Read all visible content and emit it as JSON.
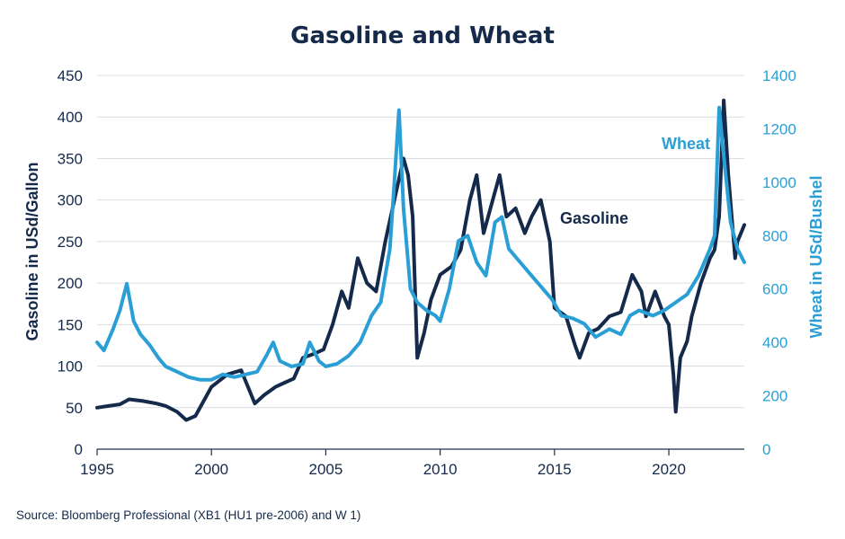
{
  "chart_data": {
    "type": "line",
    "title": "Gasoline and Wheat",
    "source": "Source: Bloomberg Professional (XB1 (HU1 pre-2006) and W 1)",
    "x": {
      "range": [
        1995,
        2023.3
      ],
      "ticks": [
        1995,
        2000,
        2005,
        2010,
        2015,
        2020
      ],
      "tick_labels": [
        "1995",
        "2000",
        "2005",
        "2010",
        "2015",
        "2020"
      ]
    },
    "y_left": {
      "label": "Gasoline in USd/Gallon",
      "range": [
        0,
        450
      ],
      "ticks": [
        0,
        50,
        100,
        150,
        200,
        250,
        300,
        350,
        400,
        450
      ],
      "tick_labels": [
        "0",
        "50",
        "100",
        "150",
        "200",
        "250",
        "300",
        "350",
        "400",
        "450"
      ]
    },
    "y_right": {
      "label": "Wheat in USd/Bushel",
      "range": [
        0,
        1400
      ],
      "ticks": [
        0,
        200,
        400,
        600,
        800,
        1000,
        1200,
        1400
      ],
      "tick_labels": [
        "0",
        "200",
        "400",
        "600",
        "800",
        "1000",
        "1200",
        "1400"
      ]
    },
    "grid": "horizontal",
    "series": [
      {
        "name": "Gasoline",
        "axis": "left",
        "color": "#152a4a",
        "x": [
          1995,
          1995.5,
          1996,
          1996.4,
          1997,
          1997.6,
          1998,
          1998.5,
          1998.9,
          1999.3,
          1999.7,
          2000,
          2000.7,
          2001.3,
          2001.9,
          2002.3,
          2002.8,
          2003.2,
          2003.6,
          2004,
          2004.5,
          2004.9,
          2005.3,
          2005.7,
          2006,
          2006.4,
          2006.8,
          2007.2,
          2007.6,
          2008,
          2008.4,
          2008.6,
          2008.8,
          2009,
          2009.3,
          2009.6,
          2010,
          2010.5,
          2010.9,
          2011.3,
          2011.6,
          2011.9,
          2012.3,
          2012.6,
          2012.9,
          2013.3,
          2013.7,
          2014,
          2014.4,
          2014.8,
          2015,
          2015.5,
          2015.9,
          2016.1,
          2016.5,
          2016.9,
          2017.4,
          2017.9,
          2018.4,
          2018.8,
          2019,
          2019.4,
          2019.8,
          2020,
          2020.2,
          2020.3,
          2020.5,
          2020.8,
          2021,
          2021.4,
          2021.8,
          2022,
          2022.2,
          2022.4,
          2022.6,
          2022.9,
          2023,
          2023.3
        ],
        "values": [
          50,
          52,
          54,
          60,
          58,
          55,
          52,
          45,
          35,
          40,
          60,
          75,
          90,
          95,
          55,
          65,
          75,
          80,
          85,
          110,
          115,
          120,
          150,
          190,
          170,
          230,
          200,
          190,
          250,
          300,
          350,
          330,
          280,
          110,
          140,
          180,
          210,
          220,
          240,
          300,
          330,
          260,
          300,
          330,
          280,
          290,
          260,
          280,
          300,
          250,
          170,
          160,
          125,
          110,
          140,
          145,
          160,
          165,
          210,
          190,
          160,
          190,
          160,
          150,
          90,
          45,
          110,
          130,
          160,
          200,
          230,
          240,
          280,
          420,
          330,
          230,
          250,
          270
        ]
      },
      {
        "name": "Wheat",
        "axis": "right",
        "color": "#2a9fd6",
        "x": [
          1995,
          1995.3,
          1995.7,
          1996,
          1996.3,
          1996.6,
          1996.9,
          1997.3,
          1997.7,
          1998,
          1998.5,
          1999,
          1999.5,
          2000,
          2000.5,
          2001,
          2001.5,
          2002,
          2002.4,
          2002.7,
          2003,
          2003.5,
          2004,
          2004.3,
          2004.7,
          2005,
          2005.5,
          2006,
          2006.5,
          2007,
          2007.4,
          2007.8,
          2008,
          2008.2,
          2008.4,
          2008.7,
          2009,
          2009.4,
          2009.8,
          2010,
          2010.4,
          2010.8,
          2011.2,
          2011.6,
          2012,
          2012.4,
          2012.7,
          2013,
          2013.5,
          2014,
          2014.5,
          2014.9,
          2015.3,
          2015.8,
          2016.3,
          2016.8,
          2017.4,
          2017.9,
          2018.3,
          2018.7,
          2019.3,
          2019.8,
          2020.3,
          2020.8,
          2021.3,
          2021.8,
          2022,
          2022.2,
          2022.4,
          2022.7,
          2023,
          2023.3
        ],
        "values": [
          400,
          370,
          450,
          520,
          620,
          480,
          430,
          390,
          340,
          310,
          290,
          270,
          260,
          260,
          280,
          270,
          280,
          290,
          350,
          400,
          330,
          310,
          320,
          400,
          330,
          310,
          320,
          350,
          400,
          500,
          550,
          750,
          1000,
          1270,
          900,
          600,
          550,
          520,
          500,
          480,
          600,
          780,
          800,
          700,
          650,
          850,
          870,
          750,
          700,
          650,
          600,
          560,
          500,
          490,
          470,
          420,
          450,
          430,
          500,
          520,
          500,
          520,
          550,
          580,
          650,
          750,
          800,
          1280,
          1100,
          850,
          750,
          700
        ]
      }
    ],
    "annotations": [
      {
        "text": "Wheat",
        "series": "Wheat"
      },
      {
        "text": "Gasoline",
        "series": "Gasoline"
      }
    ]
  }
}
